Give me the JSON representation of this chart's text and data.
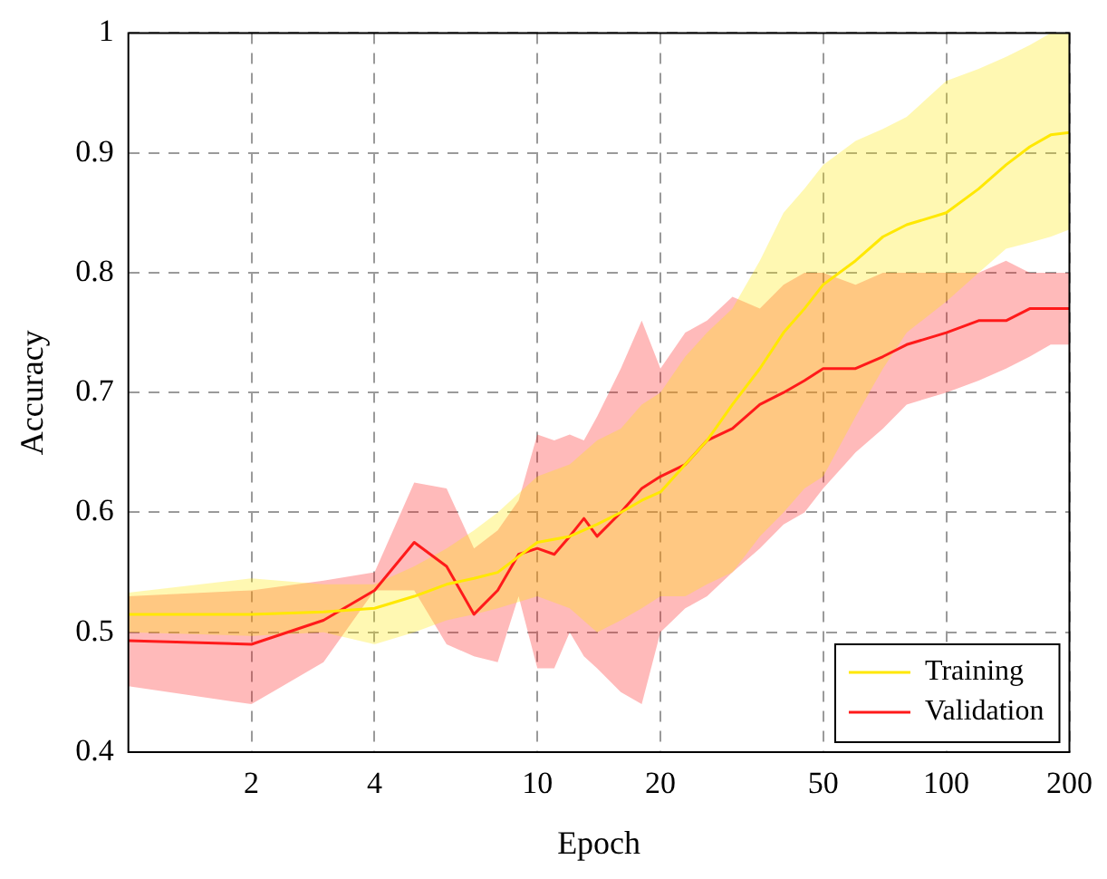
{
  "chart_data": {
    "type": "line",
    "xlabel": "Epoch",
    "ylabel": "Accuracy",
    "log": "x",
    "xlim": [
      1,
      200
    ],
    "xticks": [
      2,
      4,
      10,
      20,
      50,
      100,
      200
    ],
    "ylim": [
      0.4,
      1
    ],
    "yticks": [
      0.4,
      0.5,
      0.6,
      0.7,
      0.8,
      0.9,
      1
    ],
    "grid": true,
    "legend": "bottom right",
    "marker": "none",
    "line_style": "solid",
    "series": [
      {
        "name": "Training",
        "color": "#ffe800",
        "x": [
          1,
          2,
          3,
          4,
          5,
          6,
          7,
          8,
          10,
          12,
          14,
          16,
          18,
          20,
          23,
          26,
          30,
          35,
          40,
          45,
          50,
          60,
          70,
          80,
          100,
          120,
          140,
          160,
          180,
          200
        ],
        "values": [
          0.515,
          0.515,
          0.517,
          0.52,
          0.53,
          0.54,
          0.545,
          0.55,
          0.575,
          0.58,
          0.59,
          0.6,
          0.61,
          0.617,
          0.64,
          0.66,
          0.69,
          0.72,
          0.75,
          0.77,
          0.79,
          0.81,
          0.83,
          0.84,
          0.85,
          0.87,
          0.89,
          0.905,
          0.915,
          0.917
        ],
        "lower": [
          0.5,
          0.497,
          0.5,
          0.49,
          0.5,
          0.51,
          0.515,
          0.52,
          0.53,
          0.52,
          0.5,
          0.51,
          0.52,
          0.53,
          0.53,
          0.54,
          0.55,
          0.58,
          0.6,
          0.62,
          0.63,
          0.68,
          0.72,
          0.75,
          0.776,
          0.8,
          0.82,
          0.825,
          0.83,
          0.836
        ],
        "upper": [
          0.533,
          0.545,
          0.54,
          0.54,
          0.555,
          0.57,
          0.585,
          0.6,
          0.63,
          0.64,
          0.66,
          0.67,
          0.69,
          0.7,
          0.73,
          0.75,
          0.77,
          0.81,
          0.85,
          0.87,
          0.89,
          0.91,
          0.92,
          0.93,
          0.96,
          0.97,
          0.98,
          0.99,
          1,
          1
        ]
      },
      {
        "name": "Validation",
        "color": "#ff1a1a",
        "x": [
          1,
          2,
          3,
          4,
          5,
          6,
          7,
          8,
          9,
          10,
          11,
          12,
          13,
          14,
          16,
          18,
          20,
          23,
          26,
          30,
          35,
          40,
          45,
          50,
          60,
          70,
          80,
          100,
          120,
          140,
          160,
          180,
          200
        ],
        "values": [
          0.493,
          0.49,
          0.51,
          0.535,
          0.575,
          0.555,
          0.515,
          0.535,
          0.565,
          0.57,
          0.565,
          0.58,
          0.595,
          0.58,
          0.6,
          0.62,
          0.63,
          0.64,
          0.66,
          0.67,
          0.69,
          0.7,
          0.71,
          0.72,
          0.72,
          0.73,
          0.74,
          0.75,
          0.76,
          0.76,
          0.77,
          0.77,
          0.77
        ],
        "lower": [
          0.455,
          0.44,
          0.475,
          0.535,
          0.535,
          0.49,
          0.48,
          0.475,
          0.53,
          0.47,
          0.47,
          0.5,
          0.48,
          0.47,
          0.45,
          0.44,
          0.5,
          0.52,
          0.53,
          0.55,
          0.57,
          0.59,
          0.6,
          0.62,
          0.65,
          0.67,
          0.69,
          0.7,
          0.71,
          0.72,
          0.73,
          0.74,
          0.74
        ],
        "upper": [
          0.53,
          0.535,
          0.543,
          0.55,
          0.625,
          0.62,
          0.57,
          0.585,
          0.61,
          0.665,
          0.66,
          0.665,
          0.66,
          0.68,
          0.72,
          0.76,
          0.72,
          0.75,
          0.76,
          0.78,
          0.77,
          0.79,
          0.8,
          0.8,
          0.79,
          0.8,
          0.8,
          0.8,
          0.8,
          0.81,
          0.8,
          0.8,
          0.8
        ]
      }
    ]
  }
}
